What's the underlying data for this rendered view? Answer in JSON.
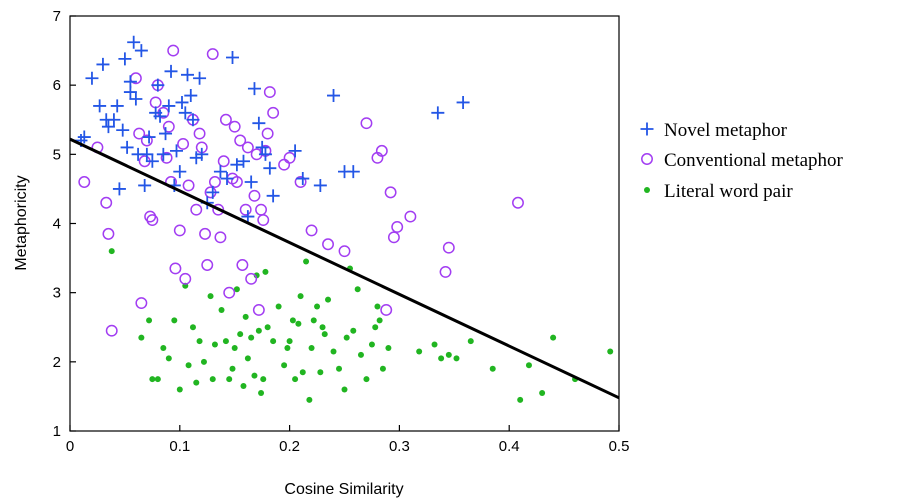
{
  "chart_data": {
    "type": "scatter",
    "title": "",
    "xlabel": "Cosine Similarity",
    "ylabel": "Metaphoricity",
    "xlim": [
      0,
      0.5
    ],
    "ylim": [
      1,
      7
    ],
    "xticks": [
      "0",
      "0.1",
      "0.2",
      "0.3",
      "0.4",
      "0.5"
    ],
    "yticks": [
      "1",
      "2",
      "3",
      "4",
      "5",
      "6",
      "7"
    ],
    "grid": false,
    "legend_position": "right",
    "series": [
      {
        "name": "Novel metaphor",
        "marker": "plus",
        "color": "#2356e6",
        "points": [
          [
            0.01,
            5.2
          ],
          [
            0.013,
            5.25
          ],
          [
            0.02,
            6.1
          ],
          [
            0.027,
            5.7
          ],
          [
            0.03,
            6.3
          ],
          [
            0.033,
            5.5
          ],
          [
            0.035,
            5.4
          ],
          [
            0.04,
            5.5
          ],
          [
            0.043,
            5.7
          ],
          [
            0.045,
            4.5
          ],
          [
            0.048,
            5.35
          ],
          [
            0.05,
            6.38
          ],
          [
            0.052,
            5.1
          ],
          [
            0.055,
            5.9
          ],
          [
            0.055,
            6.05
          ],
          [
            0.058,
            6.62
          ],
          [
            0.06,
            5.8
          ],
          [
            0.062,
            5.0
          ],
          [
            0.065,
            6.5
          ],
          [
            0.068,
            4.55
          ],
          [
            0.07,
            5.0
          ],
          [
            0.072,
            5.25
          ],
          [
            0.075,
            4.9
          ],
          [
            0.078,
            5.6
          ],
          [
            0.08,
            6.0
          ],
          [
            0.082,
            5.55
          ],
          [
            0.085,
            5.0
          ],
          [
            0.087,
            5.3
          ],
          [
            0.09,
            5.7
          ],
          [
            0.092,
            6.2
          ],
          [
            0.095,
            4.55
          ],
          [
            0.097,
            5.05
          ],
          [
            0.1,
            4.75
          ],
          [
            0.102,
            5.75
          ],
          [
            0.105,
            5.6
          ],
          [
            0.107,
            6.15
          ],
          [
            0.11,
            5.85
          ],
          [
            0.112,
            5.5
          ],
          [
            0.115,
            4.95
          ],
          [
            0.118,
            6.1
          ],
          [
            0.12,
            5.0
          ],
          [
            0.125,
            4.3
          ],
          [
            0.13,
            4.45
          ],
          [
            0.137,
            4.75
          ],
          [
            0.143,
            4.65
          ],
          [
            0.148,
            6.4
          ],
          [
            0.152,
            4.85
          ],
          [
            0.158,
            4.9
          ],
          [
            0.162,
            4.1
          ],
          [
            0.165,
            4.6
          ],
          [
            0.168,
            5.95
          ],
          [
            0.172,
            5.45
          ],
          [
            0.175,
            5.1
          ],
          [
            0.178,
            5.0
          ],
          [
            0.182,
            4.8
          ],
          [
            0.185,
            4.4
          ],
          [
            0.205,
            5.05
          ],
          [
            0.212,
            4.65
          ],
          [
            0.228,
            4.55
          ],
          [
            0.24,
            5.85
          ],
          [
            0.25,
            4.75
          ],
          [
            0.258,
            4.75
          ],
          [
            0.335,
            5.6
          ],
          [
            0.358,
            5.75
          ]
        ]
      },
      {
        "name": "Conventional metaphor",
        "marker": "circle",
        "color": "#a23df2",
        "points": [
          [
            0.013,
            4.6
          ],
          [
            0.025,
            5.1
          ],
          [
            0.033,
            4.3
          ],
          [
            0.035,
            3.85
          ],
          [
            0.038,
            2.45
          ],
          [
            0.06,
            6.1
          ],
          [
            0.063,
            5.3
          ],
          [
            0.065,
            2.85
          ],
          [
            0.068,
            4.9
          ],
          [
            0.07,
            5.2
          ],
          [
            0.073,
            4.1
          ],
          [
            0.075,
            4.05
          ],
          [
            0.078,
            5.75
          ],
          [
            0.08,
            6.0
          ],
          [
            0.085,
            5.6
          ],
          [
            0.088,
            4.95
          ],
          [
            0.09,
            5.4
          ],
          [
            0.092,
            4.6
          ],
          [
            0.094,
            6.5
          ],
          [
            0.096,
            3.35
          ],
          [
            0.1,
            3.9
          ],
          [
            0.103,
            5.15
          ],
          [
            0.105,
            3.2
          ],
          [
            0.108,
            4.55
          ],
          [
            0.112,
            5.5
          ],
          [
            0.115,
            4.2
          ],
          [
            0.118,
            5.3
          ],
          [
            0.12,
            5.1
          ],
          [
            0.123,
            3.85
          ],
          [
            0.125,
            3.4
          ],
          [
            0.128,
            4.45
          ],
          [
            0.13,
            6.45
          ],
          [
            0.132,
            4.6
          ],
          [
            0.135,
            4.2
          ],
          [
            0.137,
            3.8
          ],
          [
            0.14,
            4.9
          ],
          [
            0.142,
            5.5
          ],
          [
            0.145,
            3.0
          ],
          [
            0.148,
            4.65
          ],
          [
            0.15,
            5.4
          ],
          [
            0.152,
            4.6
          ],
          [
            0.155,
            5.2
          ],
          [
            0.157,
            3.4
          ],
          [
            0.16,
            4.2
          ],
          [
            0.162,
            5.1
          ],
          [
            0.165,
            3.2
          ],
          [
            0.168,
            4.4
          ],
          [
            0.17,
            5.0
          ],
          [
            0.172,
            2.75
          ],
          [
            0.174,
            4.2
          ],
          [
            0.176,
            4.05
          ],
          [
            0.178,
            5.05
          ],
          [
            0.18,
            5.3
          ],
          [
            0.182,
            5.9
          ],
          [
            0.185,
            5.6
          ],
          [
            0.195,
            4.85
          ],
          [
            0.2,
            4.95
          ],
          [
            0.21,
            4.6
          ],
          [
            0.22,
            3.9
          ],
          [
            0.235,
            3.7
          ],
          [
            0.25,
            3.6
          ],
          [
            0.27,
            5.45
          ],
          [
            0.28,
            4.95
          ],
          [
            0.284,
            5.05
          ],
          [
            0.288,
            2.75
          ],
          [
            0.292,
            4.45
          ],
          [
            0.295,
            3.8
          ],
          [
            0.298,
            3.95
          ],
          [
            0.31,
            4.1
          ],
          [
            0.342,
            3.3
          ],
          [
            0.345,
            3.65
          ],
          [
            0.408,
            4.3
          ]
        ]
      },
      {
        "name": "Literal word pair",
        "marker": "dot",
        "color": "#21b521",
        "points": [
          [
            0.038,
            3.6
          ],
          [
            0.065,
            2.35
          ],
          [
            0.072,
            2.6
          ],
          [
            0.075,
            1.75
          ],
          [
            0.08,
            1.75
          ],
          [
            0.085,
            2.2
          ],
          [
            0.09,
            2.05
          ],
          [
            0.095,
            2.6
          ],
          [
            0.1,
            1.6
          ],
          [
            0.105,
            3.1
          ],
          [
            0.108,
            1.95
          ],
          [
            0.112,
            2.5
          ],
          [
            0.115,
            1.7
          ],
          [
            0.118,
            2.3
          ],
          [
            0.122,
            2.0
          ],
          [
            0.128,
            2.95
          ],
          [
            0.13,
            1.75
          ],
          [
            0.132,
            2.25
          ],
          [
            0.138,
            2.75
          ],
          [
            0.142,
            2.3
          ],
          [
            0.145,
            1.75
          ],
          [
            0.148,
            1.9
          ],
          [
            0.15,
            2.2
          ],
          [
            0.152,
            3.05
          ],
          [
            0.155,
            2.4
          ],
          [
            0.158,
            1.65
          ],
          [
            0.16,
            2.65
          ],
          [
            0.162,
            2.05
          ],
          [
            0.165,
            2.35
          ],
          [
            0.168,
            1.8
          ],
          [
            0.17,
            3.25
          ],
          [
            0.172,
            2.45
          ],
          [
            0.174,
            1.55
          ],
          [
            0.176,
            1.75
          ],
          [
            0.178,
            3.3
          ],
          [
            0.18,
            2.5
          ],
          [
            0.185,
            2.3
          ],
          [
            0.19,
            2.8
          ],
          [
            0.195,
            1.95
          ],
          [
            0.198,
            2.2
          ],
          [
            0.2,
            2.3
          ],
          [
            0.203,
            2.6
          ],
          [
            0.205,
            1.75
          ],
          [
            0.208,
            2.55
          ],
          [
            0.21,
            2.95
          ],
          [
            0.212,
            1.85
          ],
          [
            0.215,
            3.45
          ],
          [
            0.218,
            1.45
          ],
          [
            0.22,
            2.2
          ],
          [
            0.222,
            2.6
          ],
          [
            0.225,
            2.8
          ],
          [
            0.228,
            1.85
          ],
          [
            0.23,
            2.5
          ],
          [
            0.232,
            2.4
          ],
          [
            0.235,
            2.9
          ],
          [
            0.24,
            2.15
          ],
          [
            0.245,
            1.9
          ],
          [
            0.25,
            1.6
          ],
          [
            0.252,
            2.35
          ],
          [
            0.255,
            3.35
          ],
          [
            0.258,
            2.45
          ],
          [
            0.262,
            3.05
          ],
          [
            0.265,
            2.1
          ],
          [
            0.27,
            1.75
          ],
          [
            0.275,
            2.25
          ],
          [
            0.278,
            2.5
          ],
          [
            0.28,
            2.8
          ],
          [
            0.282,
            2.6
          ],
          [
            0.285,
            1.9
          ],
          [
            0.29,
            2.2
          ],
          [
            0.318,
            2.15
          ],
          [
            0.332,
            2.25
          ],
          [
            0.338,
            2.05
          ],
          [
            0.345,
            2.1
          ],
          [
            0.352,
            2.05
          ],
          [
            0.365,
            2.3
          ],
          [
            0.385,
            1.9
          ],
          [
            0.41,
            1.45
          ],
          [
            0.418,
            1.95
          ],
          [
            0.43,
            1.55
          ],
          [
            0.44,
            2.35
          ],
          [
            0.46,
            1.75
          ],
          [
            0.492,
            2.15
          ]
        ]
      }
    ],
    "regression_line": {
      "type": "line",
      "color": "#000000",
      "x": [
        0,
        0.5
      ],
      "y": [
        5.22,
        1.48
      ]
    }
  },
  "legend": {
    "items": [
      {
        "name": "Novel metaphor",
        "marker": "plus",
        "color": "#2356e6"
      },
      {
        "name": "Conventional metaphor",
        "marker": "circle",
        "color": "#a23df2"
      },
      {
        "name": "Literal word pair",
        "marker": "dot",
        "color": "#21b521"
      }
    ]
  }
}
